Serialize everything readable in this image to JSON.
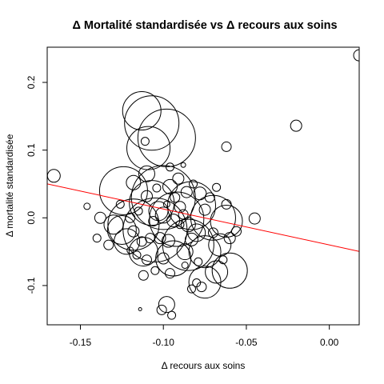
{
  "chart_data": {
    "type": "scatter",
    "title": "Δ Mortalité standardisée vs Δ recours aux soins",
    "xlabel": "Δ recours aux soins",
    "ylabel": "Δ mortalité standardisée",
    "xlim": [
      -0.17,
      0.018
    ],
    "ylim": [
      -0.158,
      0.252
    ],
    "x_ticks": [
      -0.15,
      -0.1,
      -0.05,
      0.0
    ],
    "x_tick_labels": [
      "-0.15",
      "-0.10",
      "-0.05",
      "0.00"
    ],
    "y_ticks": [
      -0.1,
      0.0,
      0.1,
      0.2
    ],
    "y_tick_labels": [
      "-0.1",
      "0.0",
      "0.1",
      "0.2"
    ],
    "regression_line": {
      "intercept": -0.04,
      "slope": -0.53,
      "color": "#ff0000"
    },
    "colors": {
      "points": "#000000",
      "regression": "#ff0000"
    },
    "points": [
      {
        "x": 0.018,
        "y": 0.24,
        "size": 7
      },
      {
        "x": -0.02,
        "y": 0.136,
        "size": 7
      },
      {
        "x": -0.166,
        "y": 0.062,
        "size": 8
      },
      {
        "x": -0.062,
        "y": 0.105,
        "size": 6
      },
      {
        "x": -0.146,
        "y": 0.017,
        "size": 4
      },
      {
        "x": -0.045,
        "y": -0.001,
        "size": 7
      },
      {
        "x": -0.113,
        "y": 0.158,
        "size": 24
      },
      {
        "x": -0.107,
        "y": 0.14,
        "size": 34
      },
      {
        "x": -0.098,
        "y": 0.118,
        "size": 36
      },
      {
        "x": -0.109,
        "y": 0.103,
        "size": 27
      },
      {
        "x": -0.111,
        "y": 0.113,
        "size": 5
      },
      {
        "x": -0.124,
        "y": 0.04,
        "size": 30
      },
      {
        "x": -0.107,
        "y": 0.022,
        "size": 28
      },
      {
        "x": -0.1,
        "y": 0.03,
        "size": 40
      },
      {
        "x": -0.083,
        "y": 0.018,
        "size": 30
      },
      {
        "x": -0.092,
        "y": -0.002,
        "size": 34
      },
      {
        "x": -0.118,
        "y": -0.01,
        "size": 32
      },
      {
        "x": -0.105,
        "y": -0.018,
        "size": 40
      },
      {
        "x": -0.085,
        "y": -0.04,
        "size": 32
      },
      {
        "x": -0.07,
        "y": 0.0,
        "size": 28
      },
      {
        "x": -0.075,
        "y": -0.05,
        "size": 20
      },
      {
        "x": -0.075,
        "y": -0.095,
        "size": 20
      },
      {
        "x": -0.068,
        "y": -0.08,
        "size": 14
      },
      {
        "x": -0.06,
        "y": -0.078,
        "size": 22
      },
      {
        "x": -0.062,
        "y": -0.005,
        "size": 20
      },
      {
        "x": -0.066,
        "y": -0.04,
        "size": 14
      },
      {
        "x": -0.094,
        "y": -0.06,
        "size": 22
      },
      {
        "x": -0.112,
        "y": -0.05,
        "size": 18
      },
      {
        "x": -0.125,
        "y": -0.018,
        "size": 18
      },
      {
        "x": -0.122,
        "y": -0.035,
        "size": 16
      },
      {
        "x": -0.13,
        "y": -0.01,
        "size": 12
      },
      {
        "x": -0.138,
        "y": 0.0,
        "size": 7
      },
      {
        "x": -0.133,
        "y": -0.04,
        "size": 6
      },
      {
        "x": -0.14,
        "y": -0.03,
        "size": 5
      },
      {
        "x": -0.096,
        "y": 0.075,
        "size": 5
      },
      {
        "x": -0.091,
        "y": 0.058,
        "size": 7
      },
      {
        "x": -0.096,
        "y": 0.046,
        "size": 9
      },
      {
        "x": -0.088,
        "y": 0.078,
        "size": 3
      },
      {
        "x": -0.11,
        "y": 0.065,
        "size": 10
      },
      {
        "x": -0.118,
        "y": 0.052,
        "size": 9
      },
      {
        "x": -0.103,
        "y": 0.01,
        "size": 12
      },
      {
        "x": -0.1,
        "y": 0.004,
        "size": 10
      },
      {
        "x": -0.094,
        "y": -0.004,
        "size": 8
      },
      {
        "x": -0.09,
        "y": 0.016,
        "size": 7
      },
      {
        "x": -0.085,
        "y": -0.01,
        "size": 9
      },
      {
        "x": -0.08,
        "y": -0.022,
        "size": 11
      },
      {
        "x": -0.083,
        "y": -0.032,
        "size": 8
      },
      {
        "x": -0.087,
        "y": -0.05,
        "size": 10
      },
      {
        "x": -0.097,
        "y": -0.034,
        "size": 8
      },
      {
        "x": -0.102,
        "y": -0.03,
        "size": 7
      },
      {
        "x": -0.108,
        "y": -0.03,
        "size": 6
      },
      {
        "x": -0.113,
        "y": -0.035,
        "size": 6
      },
      {
        "x": -0.118,
        "y": -0.02,
        "size": 7
      },
      {
        "x": -0.12,
        "y": 0.0,
        "size": 6
      },
      {
        "x": -0.115,
        "y": 0.01,
        "size": 5
      },
      {
        "x": -0.126,
        "y": 0.02,
        "size": 5
      },
      {
        "x": -0.11,
        "y": 0.032,
        "size": 7
      },
      {
        "x": -0.104,
        "y": 0.044,
        "size": 5
      },
      {
        "x": -0.093,
        "y": 0.03,
        "size": 6
      },
      {
        "x": -0.086,
        "y": 0.038,
        "size": 7
      },
      {
        "x": -0.078,
        "y": 0.036,
        "size": 8
      },
      {
        "x": -0.075,
        "y": 0.012,
        "size": 7
      },
      {
        "x": -0.07,
        "y": -0.022,
        "size": 6
      },
      {
        "x": -0.06,
        "y": -0.03,
        "size": 7
      },
      {
        "x": -0.056,
        "y": -0.02,
        "size": 6
      },
      {
        "x": -0.062,
        "y": 0.02,
        "size": 6
      },
      {
        "x": -0.1,
        "y": -0.06,
        "size": 7
      },
      {
        "x": -0.11,
        "y": -0.062,
        "size": 6
      },
      {
        "x": -0.116,
        "y": -0.055,
        "size": 5
      },
      {
        "x": -0.12,
        "y": -0.048,
        "size": 4
      },
      {
        "x": -0.112,
        "y": -0.085,
        "size": 6
      },
      {
        "x": -0.105,
        "y": -0.078,
        "size": 5
      },
      {
        "x": -0.096,
        "y": -0.082,
        "size": 6
      },
      {
        "x": -0.08,
        "y": -0.096,
        "size": 5
      },
      {
        "x": -0.077,
        "y": -0.102,
        "size": 6
      },
      {
        "x": -0.083,
        "y": -0.105,
        "size": 5
      },
      {
        "x": -0.098,
        "y": -0.128,
        "size": 10
      },
      {
        "x": -0.101,
        "y": -0.136,
        "size": 6
      },
      {
        "x": -0.095,
        "y": -0.144,
        "size": 5
      },
      {
        "x": -0.114,
        "y": -0.135,
        "size": 2
      },
      {
        "x": -0.09,
        "y": -0.01,
        "size": 5
      },
      {
        "x": -0.088,
        "y": 0.005,
        "size": 6
      },
      {
        "x": -0.106,
        "y": -0.005,
        "size": 6
      },
      {
        "x": -0.098,
        "y": 0.02,
        "size": 4
      },
      {
        "x": -0.082,
        "y": 0.05,
        "size": 5
      },
      {
        "x": -0.072,
        "y": 0.03,
        "size": 6
      },
      {
        "x": -0.068,
        "y": 0.045,
        "size": 5
      },
      {
        "x": -0.079,
        "y": -0.065,
        "size": 5
      },
      {
        "x": -0.087,
        "y": -0.07,
        "size": 4
      },
      {
        "x": -0.064,
        "y": -0.062,
        "size": 5
      }
    ]
  }
}
